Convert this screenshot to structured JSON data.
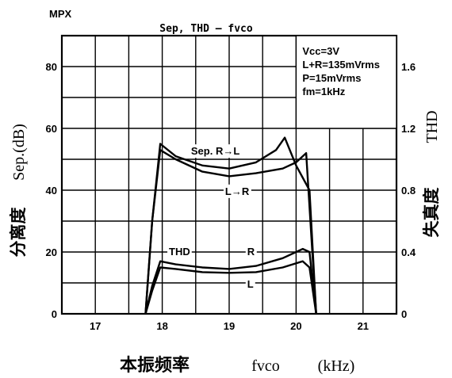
{
  "header": {
    "label": "MPX"
  },
  "chart_data": {
    "type": "line",
    "title": "Sep,  THD – fvco",
    "xlabel": {
      "cjk": "本振频率",
      "latin": "fvco",
      "unit": "(kHz)"
    },
    "ylabel_left": {
      "cjk": "分离度",
      "latin": "Sep.(dB)"
    },
    "ylabel_right": {
      "cjk": "失真度",
      "latin": "THD"
    },
    "xlim": [
      16.5,
      21.5
    ],
    "ylim_left": [
      0,
      90
    ],
    "ylim_right": [
      0,
      1.8
    ],
    "x_ticks": [
      "17",
      "18",
      "19",
      "20",
      "21"
    ],
    "y_ticks_left": [
      "0",
      "20",
      "40",
      "60",
      "80"
    ],
    "y_ticks_right": [
      "0",
      "0.4",
      "0.8",
      "1.2",
      "1.6"
    ],
    "grid": true,
    "conditions": [
      "Vcc=3V",
      "L+R=135mVrms",
      "P=15mVrms",
      "fm=1kHz"
    ],
    "series": [
      {
        "name": "Sep. R→L",
        "axis": "left",
        "x": [
          17.75,
          17.85,
          17.97,
          18.2,
          18.6,
          19.0,
          19.4,
          19.7,
          19.83,
          20.0,
          20.2,
          20.3
        ],
        "y": [
          0,
          30,
          55,
          51,
          48,
          47,
          49,
          53,
          57,
          48,
          40,
          0
        ]
      },
      {
        "name": "L→R",
        "axis": "left",
        "x": [
          17.75,
          17.85,
          17.97,
          18.2,
          18.6,
          19.0,
          19.4,
          19.8,
          20.0,
          20.15,
          20.3
        ],
        "y": [
          0,
          30,
          53,
          50,
          46,
          44.5,
          45.5,
          47,
          49,
          52,
          0
        ]
      },
      {
        "name": "THD R",
        "axis": "right",
        "x": [
          17.75,
          17.85,
          17.97,
          18.2,
          18.6,
          19.0,
          19.4,
          19.8,
          20.1,
          20.2,
          20.3
        ],
        "y": [
          0,
          0.18,
          0.34,
          0.32,
          0.3,
          0.29,
          0.31,
          0.36,
          0.42,
          0.4,
          0
        ]
      },
      {
        "name": "THD L",
        "axis": "right",
        "x": [
          17.75,
          17.85,
          17.97,
          18.2,
          18.6,
          19.0,
          19.4,
          19.8,
          20.1,
          20.2,
          20.3
        ],
        "y": [
          0,
          0.15,
          0.3,
          0.29,
          0.27,
          0.265,
          0.27,
          0.3,
          0.34,
          0.3,
          0
        ]
      }
    ],
    "annotations": [
      {
        "text": "Sep. R→L"
      },
      {
        "text": "L→R"
      },
      {
        "text": "THD"
      },
      {
        "text": "R"
      },
      {
        "text": "L"
      }
    ]
  }
}
